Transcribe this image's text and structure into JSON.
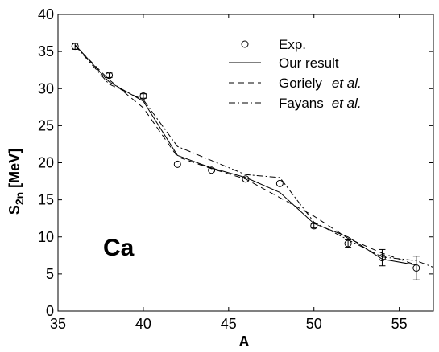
{
  "chart_data": {
    "type": "line",
    "xlabel": "A",
    "ylabel_main": "S",
    "ylabel_sub": "2n",
    "ylabel_unit": "[MeV]",
    "xlim": [
      35,
      57
    ],
    "ylim": [
      0,
      40
    ],
    "xticks": [
      35,
      40,
      45,
      50,
      55
    ],
    "yticks": [
      0,
      5,
      10,
      15,
      20,
      25,
      30,
      35,
      40
    ],
    "grid": false,
    "legend_position": "top-right",
    "annotation": "Ca",
    "experiment": {
      "name": "Exp.",
      "marker": "open-circle",
      "x": [
        36,
        38,
        40,
        42,
        44,
        46,
        48,
        50,
        52,
        54,
        56
      ],
      "y": [
        35.7,
        31.8,
        29.0,
        19.8,
        19.0,
        17.8,
        17.2,
        11.5,
        9.1,
        7.2,
        5.8
      ],
      "err": [
        0.4,
        0.3,
        0.3,
        0,
        0,
        0,
        0,
        0.3,
        0.5,
        1.1,
        1.6
      ]
    },
    "series": [
      {
        "name": "Our result",
        "style": "solid",
        "x": [
          36,
          38,
          40,
          42,
          44,
          46,
          48,
          50,
          52,
          54,
          56
        ],
        "y": [
          35.9,
          30.9,
          28.3,
          21.0,
          19.3,
          18.0,
          16.0,
          11.8,
          10.0,
          7.0,
          6.2
        ]
      },
      {
        "name": "Goriely",
        "name_suffix": "et al.",
        "style": "dashed",
        "x": [
          36,
          38,
          40,
          42,
          44,
          46,
          48,
          50,
          52,
          54,
          56
        ],
        "y": [
          35.8,
          31.2,
          27.4,
          20.8,
          19.2,
          17.8,
          15.3,
          12.8,
          9.8,
          7.8,
          6.2
        ]
      },
      {
        "name": "Fayans",
        "name_suffix": "et al.",
        "style": "dashdot",
        "x": [
          36,
          38,
          40,
          42,
          44,
          46,
          48,
          50,
          52,
          54,
          56,
          57
        ],
        "y": [
          35.8,
          30.6,
          28.5,
          22.2,
          20.3,
          18.4,
          18.0,
          12.0,
          9.6,
          7.3,
          6.8,
          5.9
        ]
      }
    ]
  }
}
